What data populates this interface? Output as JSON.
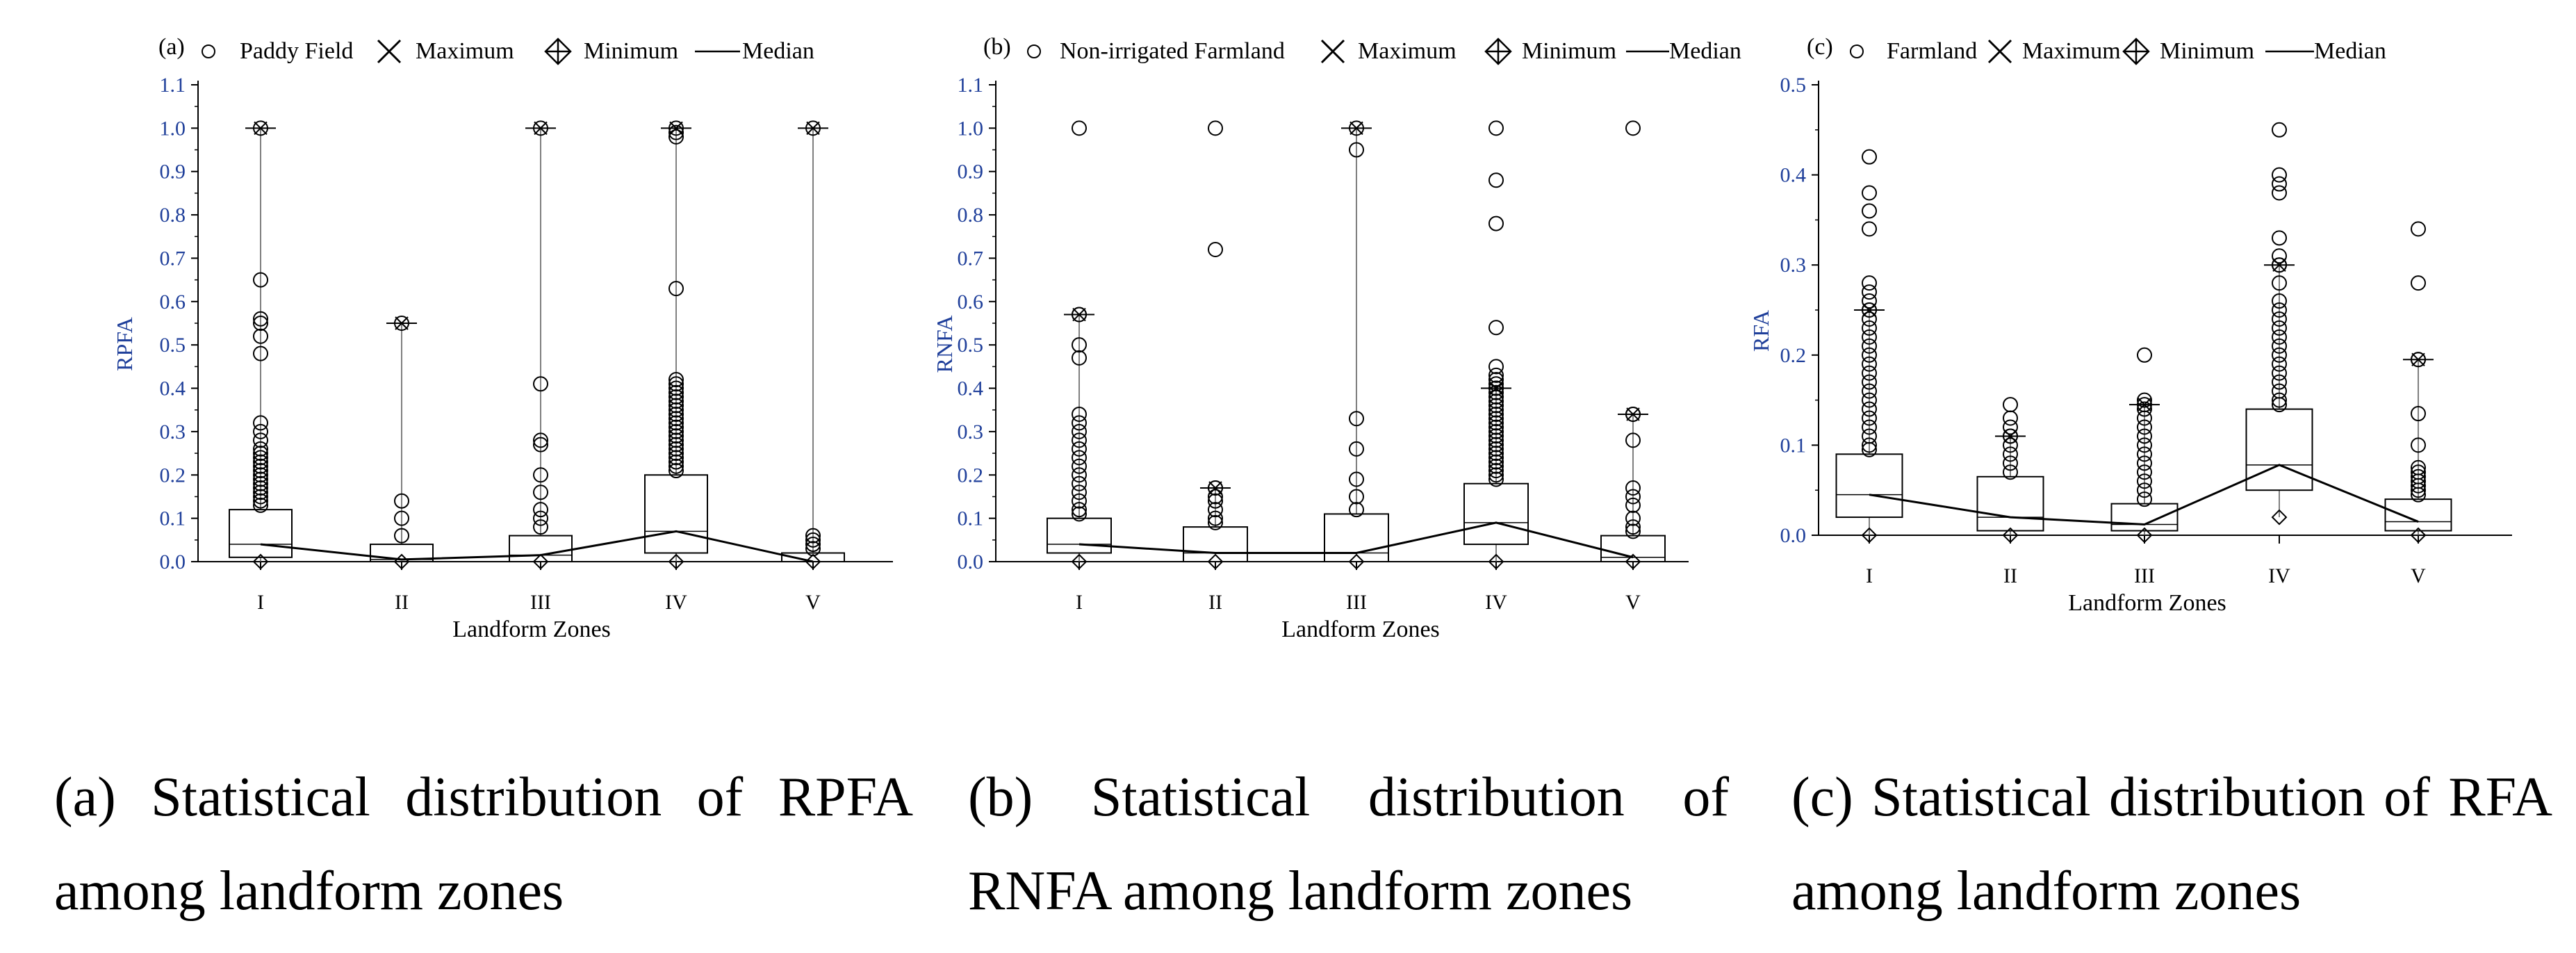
{
  "panels": [
    {
      "caption": "(a) Statistical distribution of RPFA among landform zones",
      "chart_data": {
        "type": "box",
        "panel_label": "(a)",
        "legend": {
          "series": "Paddy Field",
          "maximum": "Maximum",
          "minimum": "Minimum",
          "median": "Median"
        },
        "xlabel": "Landform Zones",
        "ylabel": "RPFA",
        "categories": [
          "I",
          "II",
          "III",
          "IV",
          "V"
        ],
        "ylim": [
          0,
          1.1
        ],
        "yticks": [
          "0.0",
          "0.1",
          "0.2",
          "0.3",
          "0.4",
          "0.5",
          "0.6",
          "0.7",
          "0.8",
          "0.9",
          "1.0",
          "1.1"
        ],
        "boxes": [
          {
            "q1": 0.01,
            "median": 0.04,
            "q3": 0.12,
            "max": 1.0,
            "min": 0.0,
            "outliers": [
              0.13,
              0.14,
              0.15,
              0.16,
              0.17,
              0.18,
              0.19,
              0.2,
              0.21,
              0.22,
              0.23,
              0.24,
              0.25,
              0.26,
              0.28,
              0.3,
              0.32,
              0.48,
              0.52,
              0.55,
              0.56,
              0.65
            ]
          },
          {
            "q1": 0.0,
            "median": 0.005,
            "q3": 0.04,
            "max": 0.55,
            "min": 0.0,
            "outliers": [
              0.06,
              0.1,
              0.14
            ]
          },
          {
            "q1": 0.0,
            "median": 0.015,
            "q3": 0.06,
            "max": 1.0,
            "min": 0.0,
            "outliers": [
              0.08,
              0.1,
              0.12,
              0.16,
              0.2,
              0.27,
              0.28,
              0.41
            ]
          },
          {
            "q1": 0.02,
            "median": 0.07,
            "q3": 0.2,
            "max": 1.0,
            "min": 0.0,
            "outliers": [
              0.21,
              0.22,
              0.23,
              0.24,
              0.25,
              0.26,
              0.27,
              0.28,
              0.29,
              0.3,
              0.31,
              0.32,
              0.33,
              0.34,
              0.35,
              0.36,
              0.37,
              0.38,
              0.39,
              0.4,
              0.41,
              0.42,
              0.63,
              0.98,
              0.99
            ]
          },
          {
            "q1": 0.0,
            "median": 0.0,
            "q3": 0.02,
            "max": 1.0,
            "min": 0.0,
            "outliers": [
              0.03,
              0.04,
              0.05,
              0.06
            ]
          }
        ]
      }
    },
    {
      "caption": "(b) Statistical distribution of RNFA among landform zones",
      "chart_data": {
        "type": "box",
        "panel_label": "(b)",
        "legend": {
          "series": "Non-irrigated Farmland",
          "maximum": "Maximum",
          "minimum": "Minimum",
          "median": "Median"
        },
        "xlabel": "Landform Zones",
        "ylabel": "RNFA",
        "categories": [
          "I",
          "II",
          "III",
          "IV",
          "V"
        ],
        "ylim": [
          0,
          1.1
        ],
        "yticks": [
          "0.0",
          "0.1",
          "0.2",
          "0.3",
          "0.4",
          "0.5",
          "0.6",
          "0.7",
          "0.8",
          "0.9",
          "1.0",
          "1.1"
        ],
        "boxes": [
          {
            "q1": 0.02,
            "median": 0.04,
            "q3": 0.1,
            "max": 0.57,
            "min": 0.0,
            "outliers": [
              0.11,
              0.12,
              0.14,
              0.16,
              0.18,
              0.2,
              0.22,
              0.24,
              0.26,
              0.28,
              0.3,
              0.32,
              0.34,
              0.47,
              0.5,
              0.57,
              1.0
            ]
          },
          {
            "q1": 0.0,
            "median": 0.02,
            "q3": 0.08,
            "max": 0.17,
            "min": 0.0,
            "outliers": [
              0.09,
              0.1,
              0.12,
              0.14,
              0.15,
              0.17,
              0.72,
              1.0
            ]
          },
          {
            "q1": 0.0,
            "median": 0.02,
            "q3": 0.11,
            "max": 1.0,
            "min": 0.0,
            "outliers": [
              0.12,
              0.15,
              0.19,
              0.26,
              0.33,
              0.95
            ]
          },
          {
            "q1": 0.04,
            "median": 0.09,
            "q3": 0.18,
            "max": 0.4,
            "min": 0.0,
            "outliers": [
              0.19,
              0.2,
              0.21,
              0.22,
              0.23,
              0.24,
              0.25,
              0.26,
              0.27,
              0.28,
              0.29,
              0.3,
              0.31,
              0.32,
              0.33,
              0.34,
              0.35,
              0.36,
              0.37,
              0.38,
              0.39,
              0.4,
              0.41,
              0.42,
              0.43,
              0.45,
              0.54,
              0.78,
              0.88,
              1.0
            ]
          },
          {
            "q1": 0.0,
            "median": 0.01,
            "q3": 0.06,
            "max": 0.34,
            "min": 0.0,
            "outliers": [
              0.07,
              0.08,
              0.1,
              0.13,
              0.15,
              0.17,
              0.28,
              0.34,
              1.0
            ]
          }
        ]
      }
    },
    {
      "caption": "(c) Statistical distribution of RFA among landform zones",
      "chart_data": {
        "type": "box",
        "panel_label": "(c)",
        "legend": {
          "series": "Farmland",
          "maximum": "Maximum",
          "minimum": "Minimum",
          "median": "Median"
        },
        "xlabel": "Landform Zones",
        "ylabel": "RFA",
        "categories": [
          "I",
          "II",
          "III",
          "IV",
          "V"
        ],
        "ylim": [
          0,
          0.5
        ],
        "yticks": [
          "0.0",
          "0.1",
          "0.2",
          "0.3",
          "0.4",
          "0.5"
        ],
        "boxes": [
          {
            "q1": 0.02,
            "median": 0.045,
            "q3": 0.09,
            "max": 0.25,
            "min": 0.0,
            "outliers": [
              0.095,
              0.1,
              0.11,
              0.12,
              0.13,
              0.14,
              0.15,
              0.16,
              0.17,
              0.18,
              0.19,
              0.2,
              0.21,
              0.22,
              0.23,
              0.24,
              0.25,
              0.26,
              0.27,
              0.28,
              0.34,
              0.36,
              0.38,
              0.42
            ]
          },
          {
            "q1": 0.005,
            "median": 0.02,
            "q3": 0.065,
            "max": 0.11,
            "min": 0.0,
            "outliers": [
              0.07,
              0.08,
              0.09,
              0.1,
              0.11,
              0.12,
              0.13,
              0.145
            ]
          },
          {
            "q1": 0.005,
            "median": 0.012,
            "q3": 0.035,
            "max": 0.145,
            "min": 0.0,
            "outliers": [
              0.04,
              0.05,
              0.06,
              0.07,
              0.08,
              0.09,
              0.1,
              0.11,
              0.12,
              0.13,
              0.14,
              0.15,
              0.2
            ]
          },
          {
            "q1": 0.05,
            "median": 0.078,
            "q3": 0.14,
            "max": 0.3,
            "min": 0.02,
            "outliers": [
              0.145,
              0.15,
              0.16,
              0.17,
              0.18,
              0.19,
              0.2,
              0.21,
              0.22,
              0.23,
              0.24,
              0.25,
              0.26,
              0.28,
              0.3,
              0.31,
              0.33,
              0.38,
              0.39,
              0.4,
              0.45
            ]
          },
          {
            "q1": 0.005,
            "median": 0.015,
            "q3": 0.04,
            "max": 0.195,
            "min": 0.0,
            "outliers": [
              0.045,
              0.05,
              0.055,
              0.06,
              0.065,
              0.07,
              0.075,
              0.1,
              0.135,
              0.195,
              0.28,
              0.34
            ]
          }
        ]
      }
    }
  ]
}
